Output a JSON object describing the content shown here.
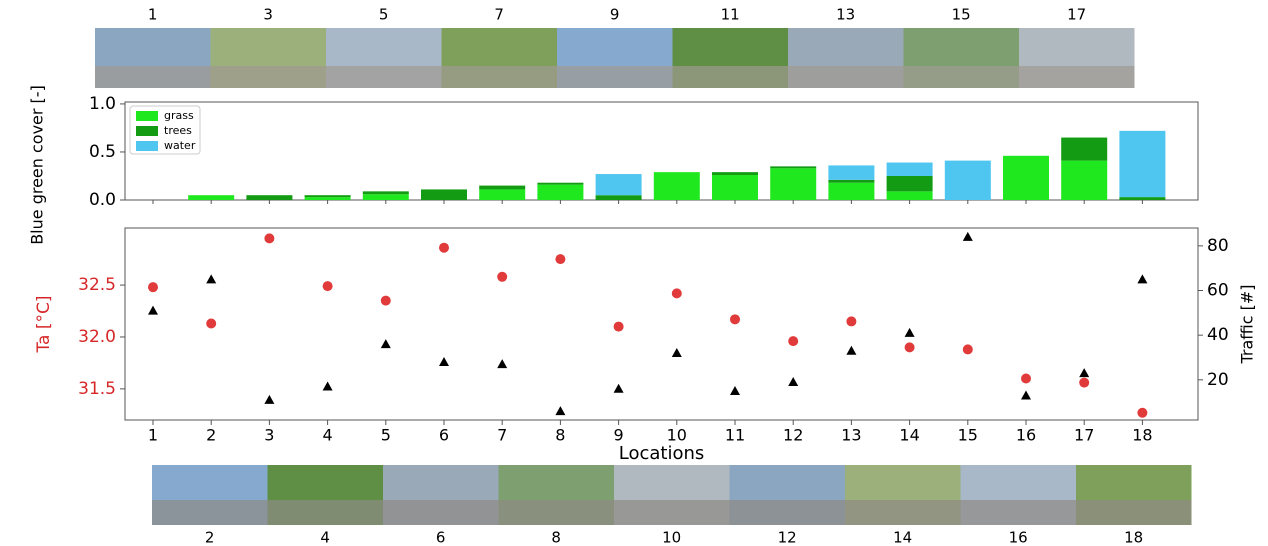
{
  "photos": {
    "top_labels": [
      "1",
      "3",
      "5",
      "7",
      "9",
      "11",
      "13",
      "15",
      "17"
    ],
    "bottom_labels": [
      "2",
      "4",
      "6",
      "8",
      "10",
      "12",
      "14",
      "16",
      "18"
    ]
  },
  "chart_data": [
    {
      "type": "stacked_bar",
      "ylabel": "Blue green cover [-]",
      "categories": [
        null,
        null,
        null,
        null,
        null,
        null,
        null,
        null,
        null,
        null,
        null,
        null,
        null,
        null,
        null,
        null,
        null,
        null
      ],
      "series": [
        {
          "name": "grass",
          "color": "#1fe81f",
          "values": [
            0,
            0.05,
            0,
            0.03,
            0.06,
            0,
            0.11,
            0.16,
            0,
            0.29,
            0.26,
            0.33,
            0.18,
            0.09,
            0,
            0.46,
            0.41,
            0
          ]
        },
        {
          "name": "trees",
          "color": "#139c13",
          "values": [
            0,
            0,
            0.05,
            0.02,
            0.03,
            0.11,
            0.04,
            0.02,
            0.05,
            0,
            0.03,
            0.02,
            0.03,
            0.16,
            0,
            0,
            0.24,
            0.03
          ]
        },
        {
          "name": "water",
          "color": "#4ec6f0",
          "values": [
            0,
            0,
            0,
            0,
            0,
            0,
            0,
            0,
            0.22,
            0,
            0,
            0,
            0.15,
            0.14,
            0.41,
            0,
            0,
            0.69
          ]
        }
      ],
      "ylim": [
        0,
        1.02
      ],
      "yticks": [
        {
          "value": 0,
          "label": "0.0"
        },
        {
          "value": 0.5,
          "label": "0.5"
        },
        {
          "value": 1,
          "label": "1.0"
        }
      ],
      "legend": "upper-left"
    },
    {
      "type": "dual_scatter",
      "xlabel": "Locations",
      "ylabel": "Ta [°C]",
      "y2label": "Traffic [#]",
      "ylabel_color": "#d62728",
      "categories": [
        "1",
        "2",
        "3",
        "4",
        "5",
        "6",
        "7",
        "8",
        "9",
        "10",
        "11",
        "12",
        "13",
        "14",
        "15",
        "16",
        "17",
        "18"
      ],
      "series": [
        {
          "color": "#e03a3a",
          "marker": "circle",
          "values": [
            32.48,
            32.13,
            32.95,
            32.49,
            32.35,
            32.86,
            32.58,
            32.75,
            32.1,
            32.42,
            32.17,
            31.96,
            32.15,
            31.9,
            31.88,
            31.6,
            31.56,
            31.27
          ]
        },
        {
          "color": "#000000",
          "marker": "triangle",
          "axis": "y2",
          "values": [
            51,
            65,
            11,
            17,
            36,
            28,
            27,
            6,
            16,
            32,
            15,
            19,
            33,
            41,
            84,
            13,
            23,
            65
          ]
        }
      ],
      "ylim": [
        31.2,
        33.05
      ],
      "yticks": [
        {
          "value": 31.5,
          "label": "31.5"
        },
        {
          "value": 32,
          "label": "32.0"
        },
        {
          "value": 32.5,
          "label": "32.5"
        }
      ],
      "y2lim": [
        2,
        88
      ],
      "y2ticks": [
        20,
        40,
        60,
        80
      ]
    }
  ]
}
